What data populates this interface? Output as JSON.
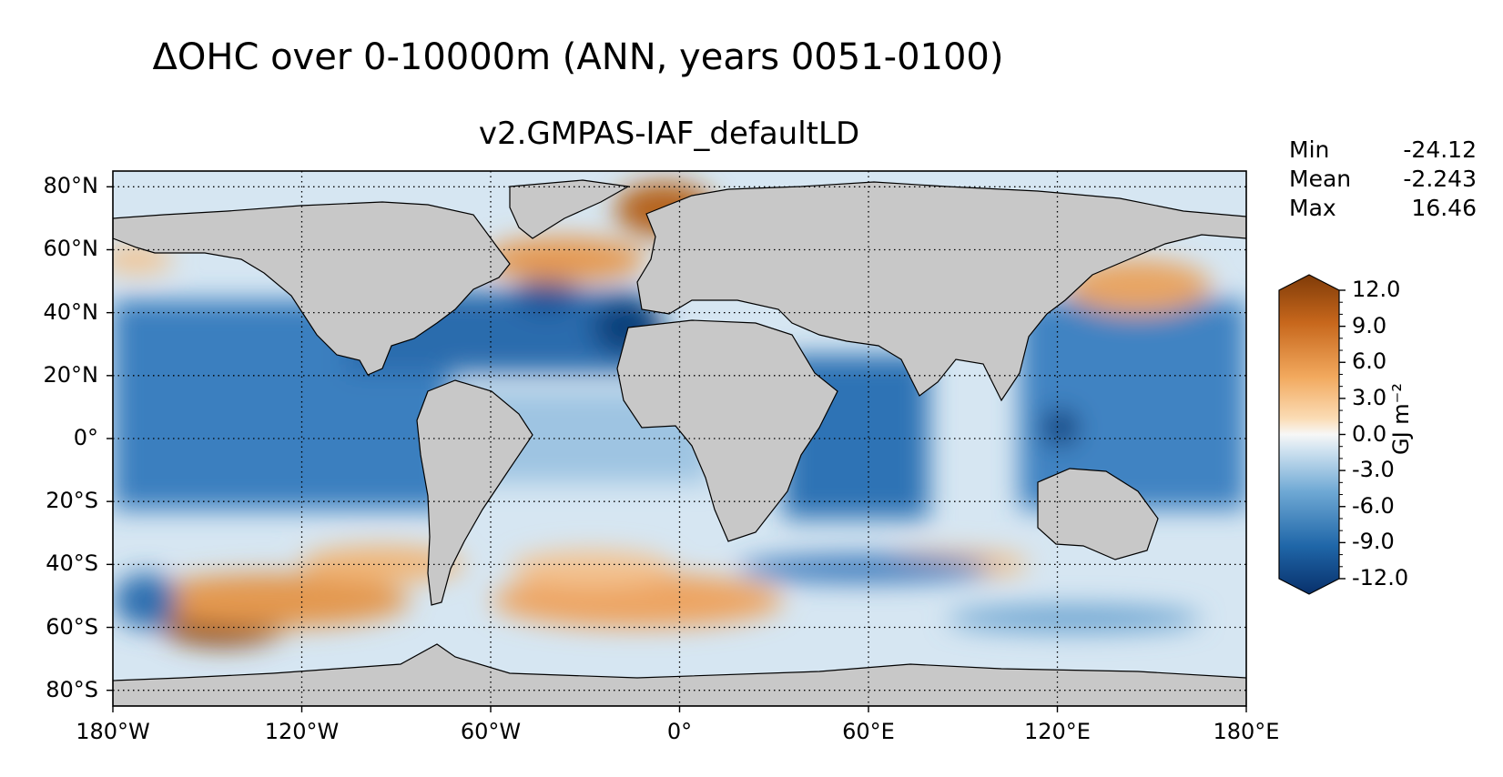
{
  "chart_data": {
    "type": "heatmap",
    "title": "ΔOHC over 0-10000m (ANN, years 0051-0100)",
    "subtitle": "v2.GMPAS-IAF_defaultLD",
    "x_ticks": [
      "180°W",
      "120°W",
      "60°W",
      "0°",
      "60°E",
      "120°E",
      "180°E"
    ],
    "x_values": [
      -180,
      -120,
      -60,
      0,
      60,
      120,
      180
    ],
    "y_ticks": [
      "80°N",
      "60°N",
      "40°N",
      "20°N",
      "0°",
      "20°S",
      "40°S",
      "60°S",
      "80°S"
    ],
    "y_values": [
      80,
      60,
      40,
      20,
      0,
      -20,
      -40,
      -60,
      -80
    ],
    "xlim": [
      -180,
      180
    ],
    "ylim": [
      -85,
      85
    ],
    "grid": "dotted",
    "stats": [
      {
        "label": "Min",
        "value": "-24.12"
      },
      {
        "label": "Mean",
        "value": "-2.243"
      },
      {
        "label": "Max",
        "value": "16.46"
      }
    ],
    "colorbar": {
      "label": "GJ m⁻²",
      "ticks": [
        "12.0",
        "9.0",
        "6.0",
        "3.0",
        "0.0",
        "-3.0",
        "-6.0",
        "-9.0",
        "-12.0"
      ],
      "tick_values": [
        12,
        9,
        6,
        3,
        0,
        -3,
        -6,
        -9,
        -12
      ],
      "range": [
        -12,
        12
      ],
      "extend": "both",
      "colors": {
        "low": "#08306b",
        "mid": "#f7f7f7",
        "high": "#7f3b08"
      }
    },
    "colors": {
      "land": "#c8c8c8",
      "coast": "#000000"
    }
  }
}
